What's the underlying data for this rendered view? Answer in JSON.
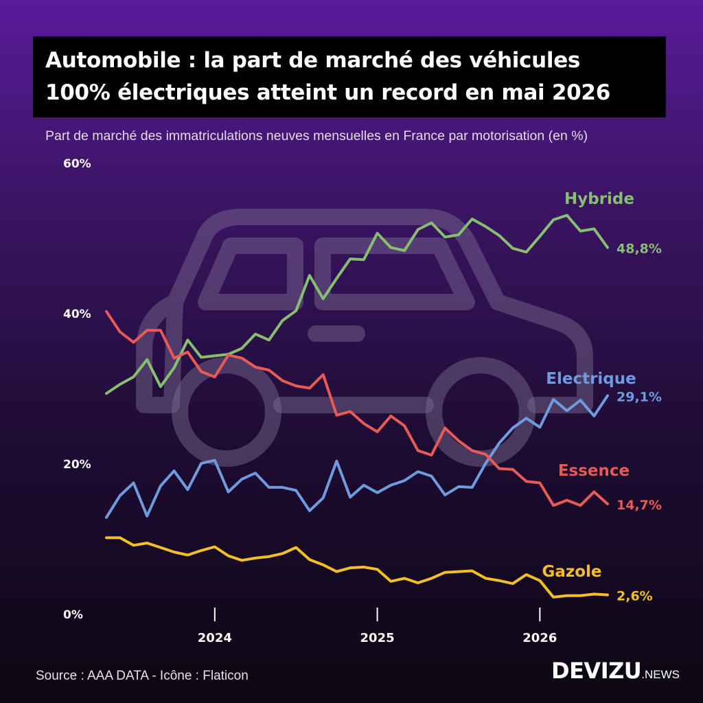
{
  "title": {
    "line1": "Automobile : la part de marché des véhicules",
    "line2": "100% électriques atteint un record en mai 2026"
  },
  "subtitle": "Part de marché des immatriculations neuves mensuelles en France par motorisation (en %)",
  "source": "Source : AAA DATA - Icône : Flaticon",
  "brand": {
    "main": "DEVIZU",
    "suffix": ".NEWS"
  },
  "background_icon": "car-icon",
  "chart_data": {
    "type": "line",
    "y_ticks": [
      "0%",
      "20%",
      "40%",
      "60%"
    ],
    "x_ticks": [
      "2024",
      "2025",
      "2026"
    ],
    "ylim": [
      0,
      60
    ],
    "grid": false,
    "x_start": "2023-05",
    "x_end": "2026-05",
    "series": [
      {
        "name": "Hybride",
        "color": "#86bf70",
        "end_label": "48,8%",
        "values": [
          29.4,
          30.6,
          31.6,
          33.9,
          30.3,
          32.8,
          36.5,
          34.2,
          34.4,
          34.6,
          35.4,
          37.3,
          36.5,
          39.1,
          40.4,
          45.1,
          42.0,
          44.7,
          47.3,
          47.2,
          50.7,
          48.8,
          48.4,
          51.2,
          52.1,
          50.2,
          50.5,
          52.6,
          51.6,
          50.4,
          48.7,
          48.2,
          50.3,
          52.5,
          53.1,
          51.0,
          51.3,
          48.8
        ]
      },
      {
        "name": "Electrique",
        "color": "#6f9bde",
        "end_label": "29,1%",
        "values": [
          12.9,
          15.8,
          17.5,
          13.1,
          17.1,
          19.1,
          16.6,
          20.1,
          20.5,
          16.3,
          18.0,
          18.8,
          16.9,
          16.9,
          16.5,
          13.8,
          15.5,
          20.4,
          15.6,
          17.2,
          16.2,
          17.2,
          17.8,
          19.0,
          18.4,
          15.9,
          17.0,
          16.9,
          20.1,
          22.8,
          24.8,
          26.1,
          24.9,
          28.6,
          27.1,
          28.5,
          26.4,
          29.1
        ]
      },
      {
        "name": "Essence",
        "color": "#e85a55",
        "end_label": "14,7%",
        "values": [
          40.3,
          37.6,
          36.2,
          37.8,
          37.8,
          34.1,
          34.9,
          32.3,
          31.6,
          34.5,
          34.1,
          32.9,
          32.5,
          31.1,
          30.4,
          30.1,
          31.9,
          26.5,
          27.0,
          25.4,
          24.3,
          26.4,
          25.1,
          21.8,
          21.2,
          24.8,
          23.1,
          21.8,
          21.3,
          19.4,
          19.3,
          17.7,
          17.5,
          14.5,
          15.2,
          14.5,
          16.3,
          14.7
        ]
      },
      {
        "name": "Gazole",
        "color": "#f3be26",
        "end_label": "2,6%",
        "values": [
          10.2,
          10.2,
          9.2,
          9.5,
          8.9,
          8.3,
          7.9,
          8.5,
          9.0,
          7.8,
          7.2,
          7.5,
          7.7,
          8.1,
          8.9,
          7.3,
          6.6,
          5.7,
          6.2,
          6.3,
          6.0,
          4.4,
          4.8,
          4.2,
          4.8,
          5.6,
          5.7,
          5.8,
          4.8,
          4.5,
          4.1,
          5.3,
          4.5,
          2.3,
          2.5,
          2.5,
          2.7,
          2.6
        ]
      }
    ]
  }
}
